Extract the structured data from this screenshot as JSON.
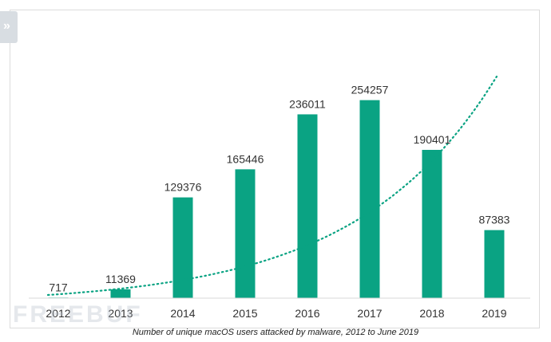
{
  "chart_data": {
    "type": "bar",
    "categories": [
      "2012",
      "2013",
      "2014",
      "2015",
      "2016",
      "2017",
      "2018",
      "2019"
    ],
    "values": [
      717,
      11369,
      129376,
      165446,
      236011,
      254257,
      190401,
      87383
    ],
    "value_labels": [
      "717",
      "11369",
      "129376",
      "165446",
      "236011",
      "254257",
      "190401",
      "87383"
    ],
    "title": "",
    "caption": "Number of unique macOS users attacked by malware, 2012 to June 2019",
    "xlabel": "",
    "ylabel": "",
    "ylim": [
      0,
      260000
    ],
    "grid": false,
    "legend": "none",
    "trendline": "dotted exponential curve",
    "bar_color": "#0aa383"
  },
  "watermark": "FREEBUF",
  "colors": {
    "accent": "#0aa383"
  },
  "icons": {
    "corner": "double-chevron-right-icon"
  }
}
